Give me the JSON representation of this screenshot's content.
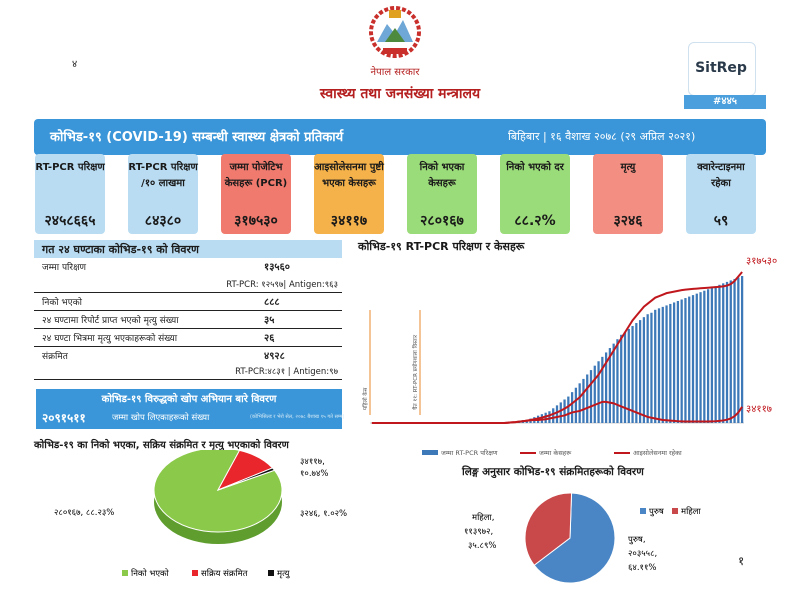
{
  "header": {
    "gov_name": "नेपाल सरकार",
    "ministry": "स्वास्थ्य तथा जनसंख्या मन्त्रालय",
    "page_mark": "४",
    "sitrep_label": "SitRep",
    "sitrep_number": "#४४५",
    "page_number": "१"
  },
  "title_bar": {
    "title": "कोभिड-१९ (COVID-19) सम्बन्धी स्वास्थ्य क्षेत्रको प्रतिकार्य",
    "date": "बिहिबार | १६ वैशाख २०७८ (२९ अप्रिल २०२१)"
  },
  "cards": [
    {
      "label": "RT-PCR परिक्षण",
      "value": "२४५८६६५",
      "bg": "#b9dcf2"
    },
    {
      "label": "RT-PCR परिक्षण /१० लाखमा",
      "value": "८४३८०",
      "bg": "#b9dcf2"
    },
    {
      "label": "जम्मा पोजेटिभ केसहरू (PCR)",
      "value": "३१७५३०",
      "bg": "#f07a6e"
    },
    {
      "label": "आइसोलेसनमा पुष्टी भएका केसहरू",
      "value": "३४११७",
      "bg": "#f6b24a"
    },
    {
      "label": "निको भएका केसहरू",
      "value": "२८०१६७",
      "bg": "#9bdc7a"
    },
    {
      "label": "निको भएको दर",
      "value": "८८.२%",
      "bg": "#9bdc7a"
    },
    {
      "label": "मृत्यु",
      "value": "३२४६",
      "bg": "#f28e82"
    },
    {
      "label": "क्वारेन्टाइनमा रहेका",
      "value": "५९",
      "bg": "#b9dcf2"
    }
  ],
  "table": {
    "title": "गत २४ घण्टाका कोभिड-१९ को विवरण",
    "rows": [
      {
        "label": "जम्मा परिक्षण",
        "value": "१३५६०",
        "sub": "RT-PCR: १२५९७| Antigen:९६३"
      },
      {
        "label": "निको भएको",
        "value": "८८८",
        "sub": ""
      },
      {
        "label": "२४ घण्टामा रिपोर्ट प्राप्त भएको मृत्यु संख्या",
        "value": "३५",
        "sub": ""
      },
      {
        "label": "२४ घण्टा भित्रमा मृत्यु भएकाहरूको संख्या",
        "value": "२६",
        "sub": ""
      },
      {
        "label": "संक्रमित",
        "value": "४९२८",
        "sub": "RT-PCR:४८३१ | Antigen:९७"
      }
    ]
  },
  "vaccine": {
    "title": "कोभिड-१९ विरुद्धको खोप अभियान बारे विवरण",
    "number": "२०९१५११",
    "label": "जम्मा खोप लिएकाहरूको संख्या",
    "note": "(कोभिसिल्ड र भेरो सेल, २०७८ बैशाख १५ गते सम्म)"
  },
  "chart_data": [
    {
      "type": "pie",
      "title": "कोभिड-१९ का निको भएका, सक्रिय संक्रमित र मृत्यु भएकाको विवरण",
      "labels": [
        "निको भएको",
        "सक्रिय संक्रमित",
        "मृत्यु"
      ],
      "values": [
        280167,
        34117,
        3246
      ],
      "percents": [
        88.23,
        10.74,
        1.02
      ],
      "data_labels": [
        "२८०१६७, ८८.२३%",
        "३४११७, १०.७४%",
        "३२४६, १.०२%"
      ],
      "colors": [
        "#8bc94a",
        "#e8262b",
        "#111111"
      ],
      "legend": "bottom"
    },
    {
      "type": "bar",
      "title": "कोभिड-१९ RT-PCR परिक्षण र केसहरू",
      "series": [
        {
          "name": "जम्मा RT-PCR परिक्षण",
          "kind": "bar",
          "color": "#3d79b8",
          "values": [
            0,
            0,
            0,
            0,
            0,
            0,
            0,
            0,
            0,
            0,
            0,
            0,
            0,
            0,
            0,
            0,
            0,
            0,
            0,
            0,
            0,
            0,
            0,
            0,
            0,
            0,
            0,
            0,
            0,
            0,
            0,
            0,
            0,
            0,
            0,
            0,
            0,
            0,
            0.01,
            0.01,
            0.02,
            0.02,
            0.03,
            0.04,
            0.05,
            0.06,
            0.07,
            0.08,
            0.1,
            0.12,
            0.14,
            0.16,
            0.18,
            0.21,
            0.24,
            0.27,
            0.3,
            0.33,
            0.36,
            0.39,
            0.42,
            0.45,
            0.48,
            0.51,
            0.54,
            0.57,
            0.6,
            0.62,
            0.64,
            0.66,
            0.68,
            0.7,
            0.72,
            0.74,
            0.75,
            0.77,
            0.78,
            0.79,
            0.8,
            0.81,
            0.82,
            0.83,
            0.84,
            0.85,
            0.86,
            0.87,
            0.88,
            0.89,
            0.9,
            0.91,
            0.92,
            0.93,
            0.94,
            0.95,
            0.96,
            0.97,
            0.98,
            0.99,
            1.0
          ]
        },
        {
          "name": "जम्मा केसहरू",
          "kind": "line",
          "color": "#c0171d",
          "values": [
            0,
            0,
            0,
            0,
            0,
            0,
            0,
            0,
            0,
            0,
            0,
            0,
            0,
            0,
            0,
            0,
            0,
            0,
            0,
            0,
            0,
            0,
            0,
            0,
            0,
            0,
            0,
            0,
            0,
            0,
            0,
            0,
            0,
            0,
            0,
            0,
            0.002,
            0.004,
            0.006,
            0.009,
            0.012,
            0.016,
            0.02,
            0.025,
            0.03,
            0.036,
            0.043,
            0.05,
            0.06,
            0.07,
            0.082,
            0.095,
            0.11,
            0.13,
            0.15,
            0.17,
            0.2,
            0.23,
            0.26,
            0.29,
            0.32,
            0.36,
            0.4,
            0.44,
            0.48,
            0.52,
            0.56,
            0.6,
            0.64,
            0.68,
            0.71,
            0.74,
            0.77,
            0.79,
            0.81,
            0.83,
            0.84,
            0.85,
            0.86,
            0.865,
            0.87,
            0.875,
            0.88,
            0.883,
            0.886,
            0.888,
            0.89,
            0.892,
            0.894,
            0.896,
            0.898,
            0.9,
            0.902,
            0.905,
            0.91,
            0.92,
            0.94,
            0.97,
            1.0
          ]
        },
        {
          "name": "आइसोलेसनमा रहेका",
          "kind": "line",
          "color": "#c0171d",
          "values": [
            0,
            0,
            0,
            0,
            0,
            0,
            0,
            0,
            0,
            0,
            0,
            0,
            0,
            0,
            0,
            0,
            0,
            0,
            0,
            0,
            0,
            0,
            0,
            0,
            0,
            0,
            0,
            0,
            0,
            0,
            0,
            0,
            0,
            0,
            0,
            0,
            0.002,
            0.004,
            0.006,
            0.009,
            0.012,
            0.015,
            0.018,
            0.02,
            0.02,
            0.022,
            0.025,
            0.03,
            0.035,
            0.04,
            0.045,
            0.05,
            0.06,
            0.07,
            0.075,
            0.08,
            0.09,
            0.1,
            0.11,
            0.12,
            0.13,
            0.14,
            0.14,
            0.135,
            0.13,
            0.12,
            0.11,
            0.1,
            0.09,
            0.08,
            0.07,
            0.06,
            0.05,
            0.04,
            0.035,
            0.03,
            0.025,
            0.02,
            0.018,
            0.016,
            0.014,
            0.012,
            0.011,
            0.01,
            0.01,
            0.01,
            0.01,
            0.01,
            0.01,
            0.01,
            0.011,
            0.012,
            0.014,
            0.017,
            0.022,
            0.03,
            0.045,
            0.07,
            0.107
          ]
        }
      ],
      "end_labels": [
        "३१७५३०",
        "३४११७"
      ],
      "annotations": [
        "पहिलो केस",
        "चैत ११: RT-PCR प्रयोगशाला विस्तार"
      ],
      "legend": "bottom"
    },
    {
      "type": "pie",
      "title": "लिङ्ग अनुसार कोभिड-१९ संक्रमितहरूको विवरण",
      "labels": [
        "पुरुष",
        "महिला"
      ],
      "values": [
        203558,
        113972
      ],
      "percents": [
        64.11,
        35.89
      ],
      "data_labels": [
        "पुरुष, २०३५५८, ६४.११%",
        "महिला, ११३९७२, ३५.८९%"
      ],
      "colors": [
        "#4a86c6",
        "#c9484a"
      ],
      "legend": "top-right"
    }
  ]
}
